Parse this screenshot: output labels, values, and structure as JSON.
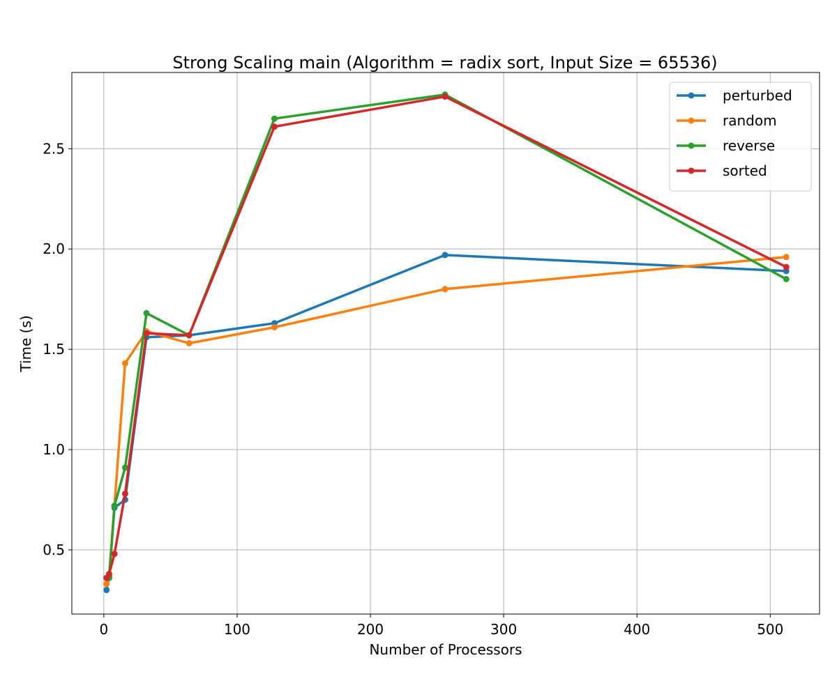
{
  "chart_data": {
    "type": "line",
    "title": "Strong Scaling main (Algorithm = radix sort, Input Size = 65536)",
    "xlabel": "Number of Processors",
    "ylabel": "Time (s)",
    "xlim": [
      -24,
      537
    ],
    "ylim": [
      0.18,
      2.88
    ],
    "xticks": [
      0,
      100,
      200,
      300,
      400,
      500
    ],
    "yticks": [
      0.5,
      1.0,
      1.5,
      2.0,
      2.5
    ],
    "ytick_labels": [
      "0.5",
      "1.0",
      "1.5",
      "2.0",
      "2.5"
    ],
    "grid": true,
    "legend_position": "top-right",
    "x": [
      2,
      4,
      8,
      16,
      32,
      64,
      128,
      256,
      512
    ],
    "series": [
      {
        "name": "perturbed",
        "color": "#1f77b4",
        "values": [
          0.3,
          0.37,
          0.71,
          0.75,
          1.56,
          1.57,
          1.63,
          1.97,
          1.89
        ]
      },
      {
        "name": "random",
        "color": "#ff7f0e",
        "values": [
          0.33,
          0.37,
          0.72,
          1.43,
          1.59,
          1.53,
          1.61,
          1.8,
          1.96
        ]
      },
      {
        "name": "reverse",
        "color": "#2ca02c",
        "values": [
          0.36,
          0.36,
          0.72,
          0.91,
          1.68,
          1.57,
          2.65,
          2.77,
          1.85
        ]
      },
      {
        "name": "sorted",
        "color": "#d62728",
        "values": [
          0.36,
          0.38,
          0.48,
          0.78,
          1.58,
          1.57,
          2.61,
          2.76,
          1.91
        ]
      }
    ]
  }
}
